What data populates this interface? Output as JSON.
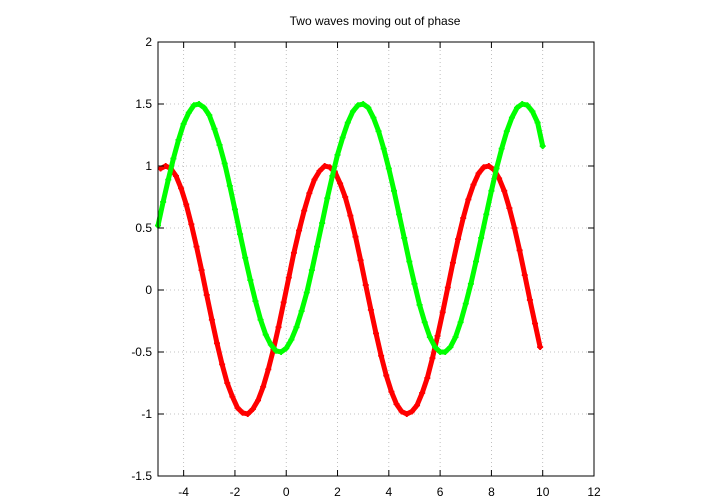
{
  "chart_data": {
    "type": "scatter",
    "title": "Two waves moving out of phase",
    "xlabel": "",
    "ylabel": "",
    "xlim": [
      -5,
      12
    ],
    "ylim": [
      -1.5,
      2
    ],
    "xticks": [
      -4,
      -2,
      0,
      2,
      4,
      6,
      8,
      10,
      12
    ],
    "yticks": [
      -1.5,
      -1,
      -0.5,
      0,
      0.5,
      1,
      1.5,
      2
    ],
    "grid": true,
    "marker": "cross",
    "series": [
      {
        "color": "#ff0000",
        "x": [
          -4.9,
          -4.7,
          -4.5,
          -4.3,
          -4.1,
          -3.9,
          -3.7,
          -3.5,
          -3.3,
          -3.1,
          -2.9,
          -2.7,
          -2.5,
          -2.3,
          -2.1,
          -1.9,
          -1.7,
          -1.5,
          -1.3,
          -1.1,
          -0.9,
          -0.7,
          -0.5,
          -0.3,
          -0.1,
          0.1,
          0.3,
          0.5,
          0.7,
          0.9,
          1.1,
          1.3,
          1.5,
          1.7,
          1.9,
          2.1,
          2.3,
          2.5,
          2.7,
          2.9,
          3.1,
          3.3,
          3.5,
          3.7,
          3.9,
          4.1,
          4.3,
          4.5,
          4.7,
          4.9,
          5.1,
          5.3,
          5.5,
          5.7,
          5.9,
          6.1,
          6.3,
          6.5,
          6.7,
          6.9,
          7.1,
          7.3,
          7.5,
          7.7,
          7.9,
          8.1,
          8.3,
          8.5,
          8.7,
          8.9,
          9.1,
          9.3,
          9.5,
          9.7,
          9.9
        ],
        "y": [
          0.98,
          1.0,
          0.98,
          0.92,
          0.82,
          0.69,
          0.53,
          0.35,
          0.16,
          -0.04,
          -0.24,
          -0.43,
          -0.6,
          -0.75,
          -0.86,
          -0.95,
          -0.99,
          -1.0,
          -0.96,
          -0.89,
          -0.78,
          -0.64,
          -0.48,
          -0.3,
          -0.1,
          0.1,
          0.3,
          0.48,
          0.64,
          0.78,
          0.89,
          0.96,
          1.0,
          0.99,
          0.95,
          0.86,
          0.75,
          0.6,
          0.43,
          0.24,
          0.04,
          -0.16,
          -0.35,
          -0.53,
          -0.69,
          -0.82,
          -0.92,
          -0.98,
          -1.0,
          -0.98,
          -0.93,
          -0.83,
          -0.71,
          -0.55,
          -0.37,
          -0.18,
          0.02,
          0.22,
          0.41,
          0.58,
          0.73,
          0.85,
          0.94,
          0.99,
          1.0,
          0.97,
          0.9,
          0.8,
          0.66,
          0.5,
          0.32,
          0.12,
          -0.08,
          -0.27,
          -0.46
        ]
      },
      {
        "color": "#00ff00",
        "x": [
          -5.0,
          -4.8,
          -4.6,
          -4.4,
          -4.2,
          -4.0,
          -3.8,
          -3.6,
          -3.4,
          -3.2,
          -3.0,
          -2.8,
          -2.6,
          -2.4,
          -2.2,
          -2.0,
          -1.8,
          -1.6,
          -1.4,
          -1.2,
          -1.0,
          -0.8,
          -0.6,
          -0.4,
          -0.2,
          0.0,
          0.2,
          0.4,
          0.6,
          0.8,
          1.0,
          1.2,
          1.4,
          1.6,
          1.8,
          2.0,
          2.2,
          2.4,
          2.6,
          2.8,
          3.0,
          3.2,
          3.4,
          3.6,
          3.8,
          4.0,
          4.2,
          4.4,
          4.6,
          4.8,
          5.0,
          5.2,
          5.4,
          5.6,
          5.8,
          6.0,
          6.2,
          6.4,
          6.6,
          6.8,
          7.0,
          7.2,
          7.4,
          7.6,
          7.8,
          8.0,
          8.2,
          8.4,
          8.6,
          8.8,
          9.0,
          9.2,
          9.4,
          9.6,
          9.8,
          10.0
        ],
        "y": [
          0.52,
          0.71,
          0.89,
          1.06,
          1.21,
          1.34,
          1.43,
          1.49,
          1.5,
          1.47,
          1.41,
          1.3,
          1.17,
          1.02,
          0.84,
          0.65,
          0.45,
          0.26,
          0.08,
          -0.09,
          -0.24,
          -0.36,
          -0.44,
          -0.49,
          -0.5,
          -0.47,
          -0.4,
          -0.3,
          -0.17,
          -0.02,
          0.16,
          0.35,
          0.54,
          0.74,
          0.92,
          1.09,
          1.23,
          1.35,
          1.44,
          1.49,
          1.5,
          1.47,
          1.39,
          1.28,
          1.14,
          0.98,
          0.8,
          0.61,
          0.42,
          0.23,
          0.05,
          -0.12,
          -0.26,
          -0.38,
          -0.46,
          -0.5,
          -0.5,
          -0.46,
          -0.38,
          -0.26,
          -0.11,
          0.05,
          0.23,
          0.42,
          0.61,
          0.8,
          0.98,
          1.14,
          1.28,
          1.39,
          1.47,
          1.5,
          1.49,
          1.44,
          1.35,
          1.16
        ]
      }
    ]
  }
}
